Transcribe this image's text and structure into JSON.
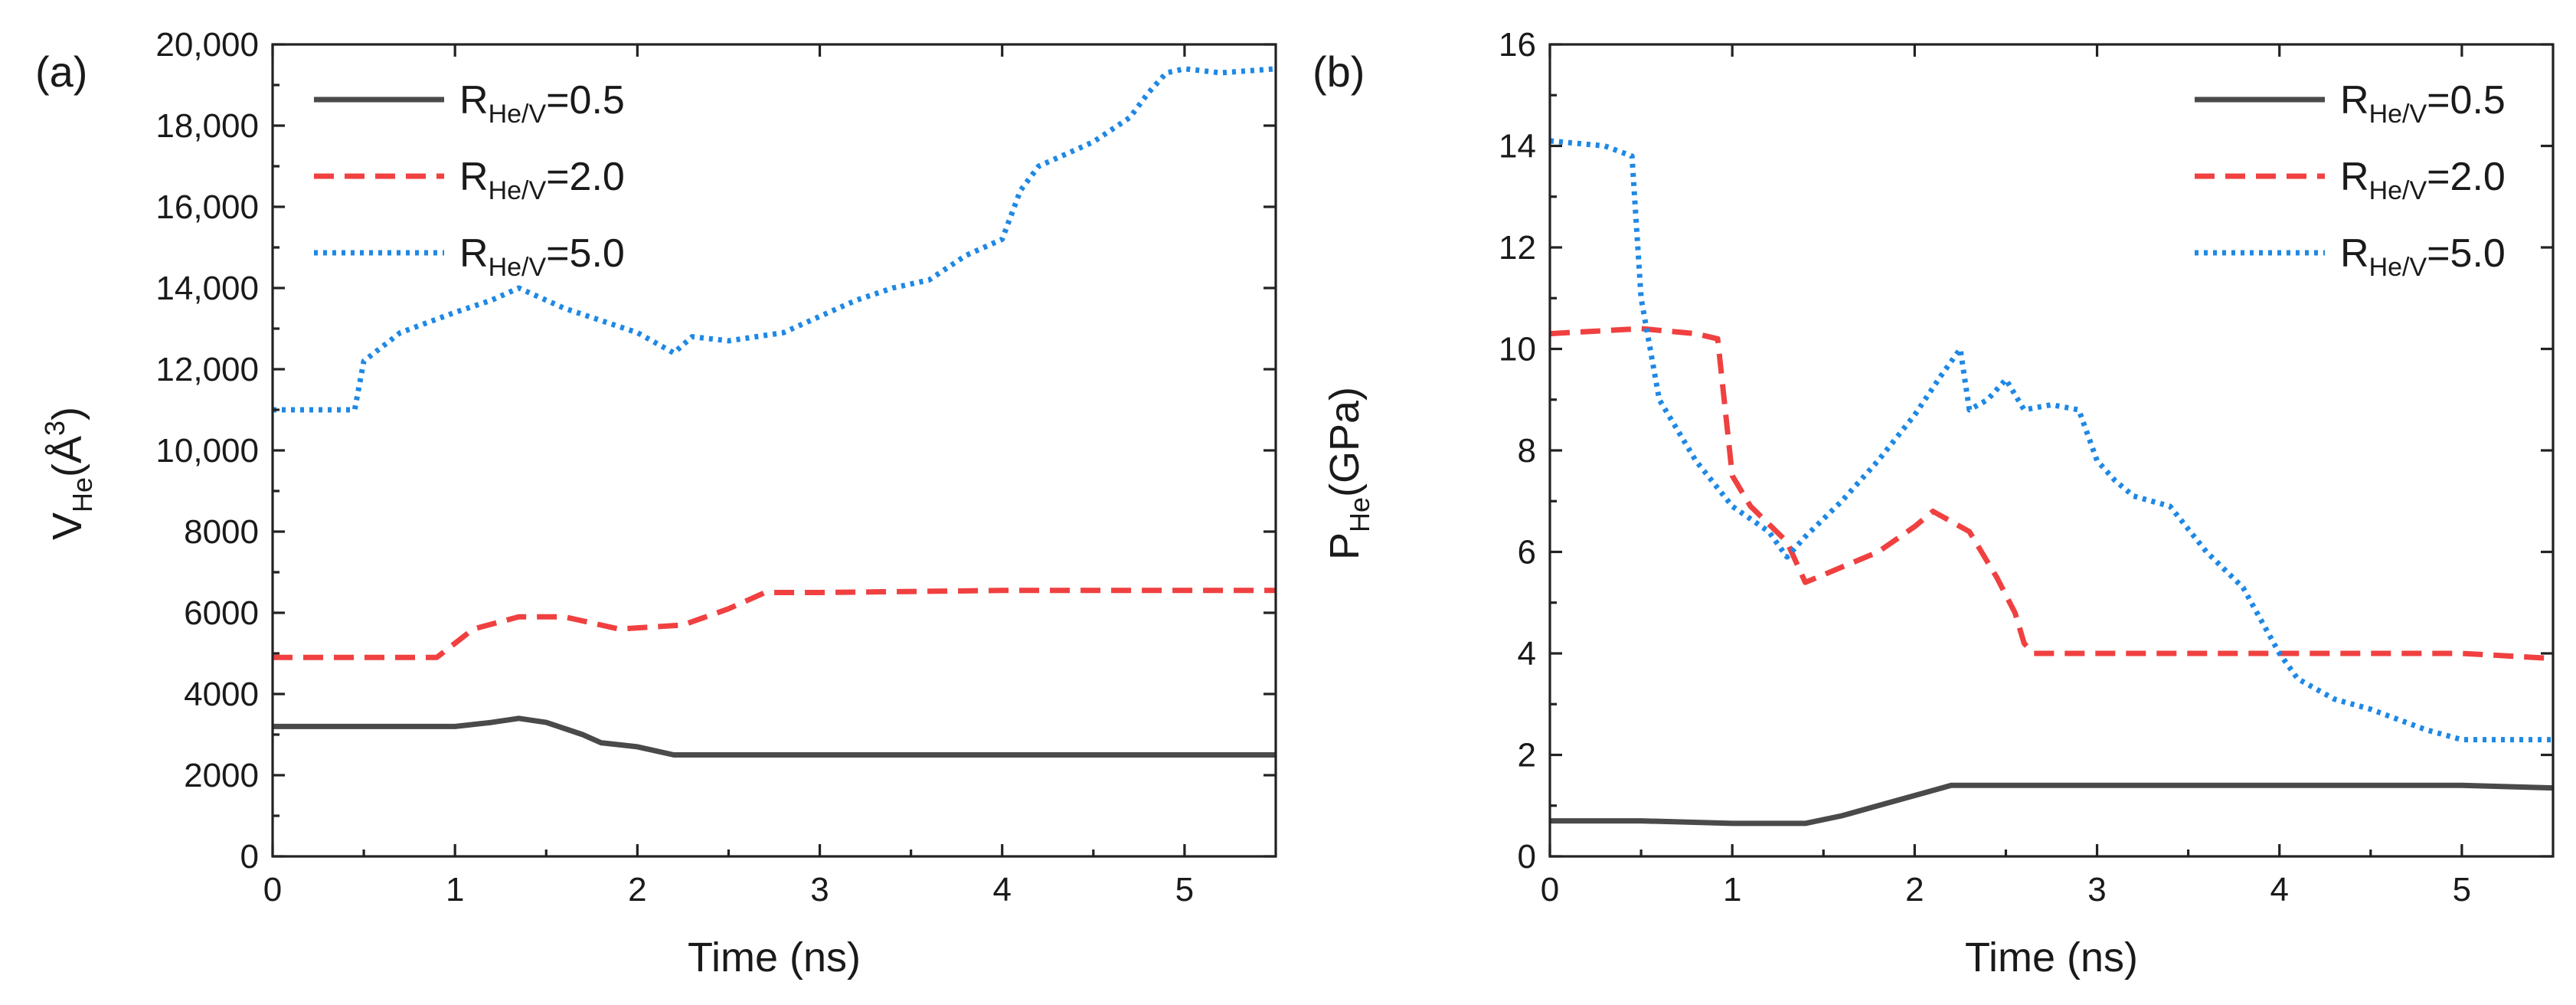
{
  "colors": {
    "s05": "#4a4a4a",
    "s20": "#f04040",
    "s50": "#1e88e5",
    "axis": "#222222"
  },
  "legend": [
    {
      "key": "s05",
      "R": "R",
      "sub": "He/V",
      "val": "=0.5",
      "dash": "solid"
    },
    {
      "key": "s20",
      "R": "R",
      "sub": "He/V",
      "val": "=2.0",
      "dash": "dash"
    },
    {
      "key": "s50",
      "R": "R",
      "sub": "He/V",
      "val": "=5.0",
      "dash": "dot"
    }
  ],
  "chart_data": [
    {
      "panel": "(a)",
      "type": "line",
      "xlabel": "Time (ns)",
      "ylabel_main": "V",
      "ylabel_sub": "He",
      "ylabel_tail": "(Å",
      "ylabel_sup": "3",
      "ylabel_close": ")",
      "xlim": [
        0,
        5.5
      ],
      "ylim": [
        0,
        20000
      ],
      "xticks": [
        0,
        1,
        2,
        3,
        4,
        5
      ],
      "xtick_labels": [
        "0",
        "1",
        "2",
        "3",
        "4",
        "5"
      ],
      "yticks": [
        0,
        2000,
        4000,
        6000,
        8000,
        10000,
        12000,
        14000,
        16000,
        18000,
        20000
      ],
      "ytick_labels": [
        "0",
        "2000",
        "4000",
        "6000",
        "8000",
        "10,000",
        "12,000",
        "14,000",
        "16,000",
        "18,000",
        "20,000"
      ],
      "series": [
        {
          "key": "s05",
          "name": "RHe/V=0.5",
          "x": [
            0,
            0.5,
            1.0,
            1.2,
            1.35,
            1.5,
            1.7,
            1.8,
            2.0,
            2.2,
            3.0,
            4.0,
            5.0,
            5.5
          ],
          "y": [
            3200,
            3200,
            3200,
            3300,
            3400,
            3300,
            3000,
            2800,
            2700,
            2500,
            2500,
            2500,
            2500,
            2500
          ]
        },
        {
          "key": "s20",
          "name": "RHe/V=2.0",
          "x": [
            0,
            0.9,
            1.1,
            1.35,
            1.6,
            1.9,
            2.25,
            2.5,
            2.7,
            3.0,
            4.0,
            5.0,
            5.5
          ],
          "y": [
            4900,
            4900,
            5600,
            5900,
            5900,
            5600,
            5700,
            6100,
            6500,
            6500,
            6550,
            6550,
            6550
          ]
        },
        {
          "key": "s50",
          "name": "RHe/V=5.0",
          "x": [
            0,
            0.45,
            0.5,
            0.7,
            1.0,
            1.2,
            1.35,
            1.6,
            2.0,
            2.2,
            2.3,
            2.5,
            2.8,
            3.0,
            3.2,
            3.4,
            3.6,
            3.8,
            4.0,
            4.1,
            4.2,
            4.5,
            4.7,
            4.8,
            4.9,
            5.0,
            5.2,
            5.5
          ],
          "y": [
            11000,
            11000,
            12200,
            12900,
            13400,
            13700,
            14000,
            13500,
            12900,
            12400,
            12800,
            12700,
            12900,
            13300,
            13700,
            14000,
            14200,
            14800,
            15200,
            16400,
            17000,
            17600,
            18200,
            18800,
            19300,
            19400,
            19300,
            19400
          ]
        }
      ]
    },
    {
      "panel": "(b)",
      "type": "line",
      "xlabel": "Time (ns)",
      "ylabel_main": "P",
      "ylabel_sub": "He",
      "ylabel_tail": "(GPa)",
      "ylabel_sup": "",
      "ylabel_close": "",
      "xlim": [
        0,
        5.5
      ],
      "ylim": [
        0,
        16
      ],
      "xticks": [
        0,
        1,
        2,
        3,
        4,
        5
      ],
      "xtick_labels": [
        "0",
        "1",
        "2",
        "3",
        "4",
        "5"
      ],
      "yticks": [
        0,
        2,
        4,
        6,
        8,
        10,
        12,
        14,
        16
      ],
      "ytick_labels": [
        "0",
        "2",
        "4",
        "6",
        "8",
        "10",
        "12",
        "14",
        "16"
      ],
      "series": [
        {
          "key": "s05",
          "name": "RHe/V=0.5",
          "x": [
            0,
            0.5,
            1.0,
            1.4,
            1.6,
            1.8,
            2.0,
            2.2,
            2.4,
            3.0,
            4.0,
            5.0,
            5.5
          ],
          "y": [
            0.7,
            0.7,
            0.65,
            0.65,
            0.8,
            1.0,
            1.2,
            1.4,
            1.4,
            1.4,
            1.4,
            1.4,
            1.35
          ]
        },
        {
          "key": "s20",
          "name": "RHe/V=2.0",
          "x": [
            0,
            0.5,
            0.8,
            0.92,
            1.0,
            1.1,
            1.3,
            1.4,
            1.6,
            1.8,
            2.0,
            2.1,
            2.3,
            2.45,
            2.55,
            2.6,
            2.65,
            3.0,
            4.0,
            5.0,
            5.5
          ],
          "y": [
            10.3,
            10.4,
            10.3,
            10.2,
            7.5,
            6.9,
            6.2,
            5.4,
            5.7,
            6.0,
            6.5,
            6.8,
            6.4,
            5.5,
            4.8,
            4.2,
            4.0,
            4.0,
            4.0,
            4.0,
            3.9
          ]
        },
        {
          "key": "s50",
          "name": "RHe/V=5.0",
          "x": [
            0,
            0.3,
            0.45,
            0.5,
            0.6,
            0.8,
            1.0,
            1.2,
            1.3,
            1.4,
            1.6,
            1.8,
            2.0,
            2.15,
            2.25,
            2.3,
            2.4,
            2.5,
            2.6,
            2.75,
            2.9,
            3.0,
            3.1,
            3.2,
            3.4,
            3.6,
            3.8,
            4.0,
            4.1,
            4.3,
            4.5,
            4.8,
            5.0,
            5.5
          ],
          "y": [
            14.1,
            14.0,
            13.8,
            11.0,
            9.0,
            7.8,
            6.9,
            6.4,
            5.9,
            6.3,
            7.0,
            7.8,
            8.7,
            9.5,
            10.0,
            8.8,
            9.0,
            9.4,
            8.8,
            8.9,
            8.8,
            7.8,
            7.4,
            7.1,
            6.9,
            6.0,
            5.3,
            4.0,
            3.5,
            3.1,
            2.9,
            2.5,
            2.3,
            2.3
          ]
        }
      ]
    }
  ]
}
